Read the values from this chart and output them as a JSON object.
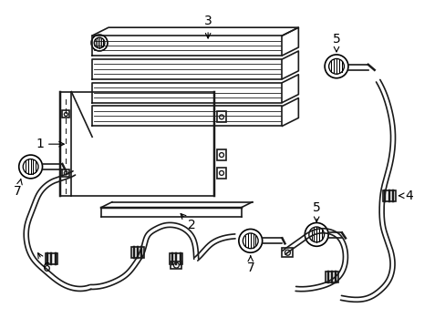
{
  "bg_color": "#ffffff",
  "lc": "#1a1a1a",
  "lw": 1.2,
  "figsize": [
    4.89,
    3.6
  ],
  "dpi": 100
}
